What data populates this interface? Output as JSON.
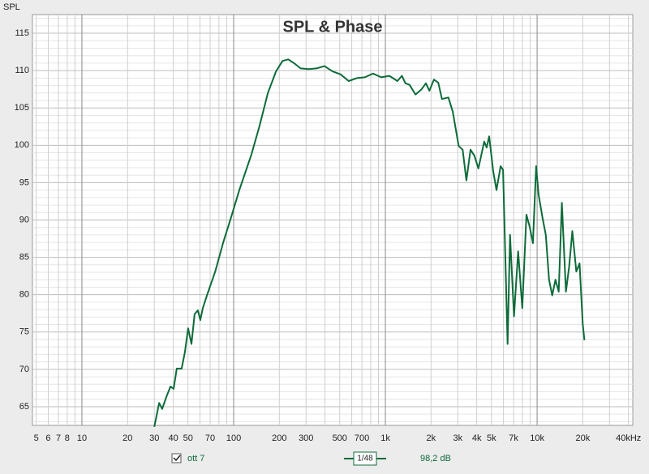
{
  "chart_data": {
    "type": "line",
    "title": "SPL & Phase",
    "y_label": "SPL",
    "log_x": true,
    "grid": true,
    "xlim": [
      4.72,
      42700
    ],
    "ylim": [
      62.5,
      117.5
    ],
    "xticks": [
      5,
      6,
      7,
      8,
      10,
      20,
      30,
      40,
      50,
      70,
      100,
      200,
      300,
      500,
      700,
      {
        "value": 1000,
        "label": "1k"
      },
      {
        "value": 2000,
        "label": "2k"
      },
      {
        "value": 3000,
        "label": "3k"
      },
      {
        "value": 4000,
        "label": "4k"
      },
      {
        "value": 5000,
        "label": "5k"
      },
      {
        "value": 7000,
        "label": "7k"
      },
      {
        "value": 10000,
        "label": "10k"
      },
      {
        "value": 20000,
        "label": "20k"
      },
      {
        "value": 40000,
        "label": "40kHz"
      }
    ],
    "xminorticks": [
      9,
      60,
      80,
      90,
      400,
      600,
      800,
      900,
      6000,
      8000,
      9000,
      30000
    ],
    "yticks": [
      65,
      70,
      75,
      80,
      85,
      90,
      95,
      100,
      105,
      110,
      115
    ],
    "yminorticks": [
      63,
      64,
      66,
      67,
      68,
      69,
      71,
      72,
      73,
      74,
      76,
      77,
      78,
      79,
      81,
      82,
      83,
      84,
      86,
      87,
      88,
      89,
      91,
      92,
      93,
      94,
      96,
      97,
      98,
      99,
      101,
      102,
      103,
      104,
      106,
      107,
      108,
      109,
      111,
      112,
      113,
      114,
      116,
      117
    ],
    "x": [
      30,
      32.3,
      33.8,
      36,
      38.3,
      40.2,
      42.2,
      45.4,
      47.7,
      50.1,
      52.7,
      55.3,
      58.1,
      60.3,
      62.6,
      66.7,
      75.6,
      85.1,
      96.4,
      109,
      131,
      148,
      168,
      190,
      210,
      229,
      250,
      276,
      311,
      352,
      397,
      448,
      506,
      573,
      648,
      733,
      829,
      938,
      1061,
      1200,
      1285,
      1356,
      1443,
      1580,
      1730,
      1850,
      1950,
      2090,
      2230,
      2360,
      2600,
      2780,
      3040,
      3230,
      3420,
      3640,
      3860,
      4100,
      4480,
      4650,
      4830,
      5140,
      5400,
      5750,
      5960,
      6390,
      6630,
      7040,
      7500,
      7980,
      8500,
      8930,
      9380,
      9860,
      10220,
      10870,
      11410,
      11980,
      12580,
      13210,
      13870,
      14560,
      15480,
      16250,
      17060,
      18120,
      19030,
      19980,
      20500
    ],
    "series": [
      {
        "name": "ott 7",
        "color": "#0d6b3a",
        "values": [
          62.3,
          65.5,
          64.7,
          66.3,
          67.7,
          67.4,
          70.1,
          70.1,
          72.3,
          75.5,
          73.4,
          77.4,
          77.9,
          76.6,
          78.2,
          79.9,
          83.1,
          86.9,
          90.4,
          94,
          98.8,
          102.6,
          107,
          109.9,
          111.3,
          111.5,
          111,
          110.3,
          110.2,
          110.3,
          110.6,
          109.9,
          109.5,
          108.6,
          109,
          109.1,
          109.6,
          109.1,
          109.3,
          108.6,
          109.3,
          108.3,
          108.1,
          106.8,
          107.5,
          108.3,
          107.3,
          108.8,
          108.4,
          106.2,
          106.4,
          104.5,
          99.9,
          99.4,
          95.3,
          99.4,
          98.6,
          96.9,
          100.5,
          99.7,
          101.2,
          96.5,
          94,
          97.2,
          96.7,
          73.4,
          88,
          77.1,
          85.8,
          78.2,
          90.7,
          89.1,
          86.9,
          97.2,
          93.4,
          90.2,
          88,
          82,
          79.9,
          82,
          80.4,
          92.3,
          80.4,
          83.7,
          88.5,
          83.1,
          84.2,
          76.1,
          73.9
        ]
      }
    ],
    "legend": {
      "smoothing": "1/48",
      "readout": "98,2 dB"
    }
  }
}
